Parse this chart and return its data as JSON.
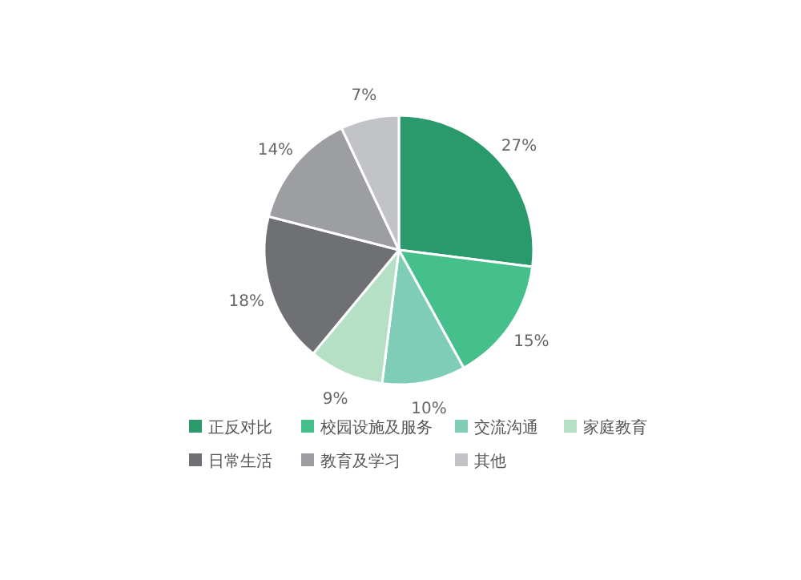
{
  "chart_data": {
    "type": "pie",
    "categories": [
      "正反对比",
      "校园设施及服务",
      "交流沟通",
      "家庭教育",
      "日常生活",
      "教育及学习",
      "其他"
    ],
    "values": [
      27,
      15,
      10,
      9,
      18,
      14,
      7
    ],
    "value_labels": [
      "27%",
      "15%",
      "10%",
      "9%",
      "18%",
      "14%",
      "7%"
    ],
    "colors": [
      "#2a9a6c",
      "#45bf8c",
      "#7fcdb7",
      "#b5e0c5",
      "#6f7074",
      "#9d9ea2",
      "#c2c3c7"
    ],
    "legend": "bottom"
  }
}
